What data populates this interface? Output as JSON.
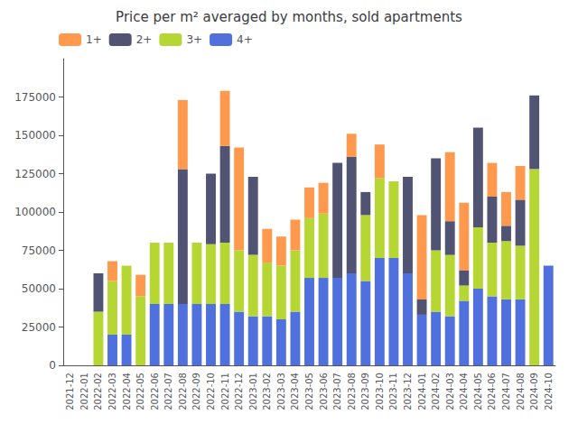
{
  "chart_data": {
    "type": "bar",
    "title": "Price per m² averaged by months, sold apartments",
    "categories": [
      "2021-12",
      "2022-01",
      "2022-02",
      "2022-03",
      "2022-04",
      "2022-05",
      "2022-06",
      "2022-07",
      "2022-08",
      "2022-09",
      "2022-10",
      "2022-11",
      "2022-12",
      "2023-01",
      "2023-02",
      "2023-03",
      "2023-04",
      "2023-05",
      "2023-06",
      "2023-07",
      "2023-08",
      "2023-09",
      "2023-10",
      "2023-11",
      "2023-12",
      "2024-01",
      "2024-02",
      "2024-03",
      "2024-04",
      "2024-05",
      "2024-06",
      "2024-07",
      "2024-08",
      "2024-09",
      "2024-10"
    ],
    "series": [
      {
        "name": "1+",
        "values": [
          0,
          0,
          0,
          13000,
          0,
          14000,
          0,
          0,
          45000,
          0,
          0,
          36000,
          67000,
          0,
          22000,
          19000,
          20000,
          20000,
          20000,
          0,
          15000,
          0,
          22000,
          0,
          0,
          55000,
          0,
          45000,
          44000,
          0,
          22000,
          22000,
          22000,
          0,
          0
        ]
      },
      {
        "name": "2+",
        "values": [
          0,
          0,
          25000,
          0,
          0,
          0,
          0,
          0,
          88000,
          0,
          46000,
          63000,
          0,
          51000,
          0,
          0,
          0,
          0,
          0,
          75000,
          76000,
          15000,
          0,
          0,
          63000,
          10000,
          60000,
          22000,
          10000,
          65000,
          30000,
          10000,
          30000,
          48000,
          0
        ]
      },
      {
        "name": "3+",
        "values": [
          0,
          0,
          35000,
          35000,
          45000,
          45000,
          40000,
          40000,
          0,
          40000,
          39000,
          40000,
          40000,
          40000,
          35000,
          35000,
          40000,
          39000,
          42000,
          0,
          0,
          43000,
          52000,
          50000,
          0,
          0,
          40000,
          40000,
          10000,
          40000,
          35000,
          38000,
          35000,
          128000,
          0
        ]
      },
      {
        "name": "4+",
        "values": [
          0,
          0,
          0,
          20000,
          20000,
          0,
          40000,
          40000,
          40000,
          40000,
          40000,
          40000,
          35000,
          32000,
          32000,
          30000,
          35000,
          57000,
          57000,
          57000,
          60000,
          55000,
          70000,
          70000,
          60000,
          33000,
          35000,
          32000,
          42000,
          50000,
          45000,
          43000,
          43000,
          0,
          65000
        ]
      }
    ],
    "stacked": true,
    "ylim": [
      0,
      200000
    ],
    "yticks": [
      0,
      25000,
      50000,
      75000,
      100000,
      125000,
      150000,
      175000
    ],
    "grid": false,
    "legend": "upper left"
  }
}
